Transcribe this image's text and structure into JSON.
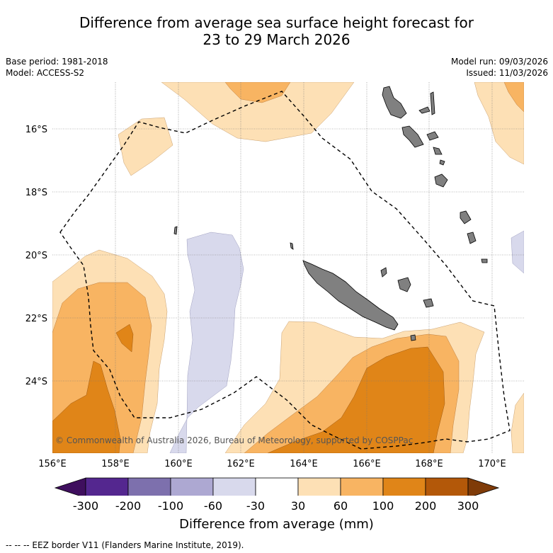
{
  "title": {
    "line1": "Difference from average sea surface height forecast for",
    "line2": "23 to 29 March 2026"
  },
  "meta": {
    "base_period": "Base period: 1981-2018",
    "model": "Model: ACCESS-S2",
    "model_run": "Model run: 09/03/2026",
    "issued": "Issued: 11/03/2026"
  },
  "map": {
    "lat_labels": [
      "16°S",
      "18°S",
      "20°S",
      "22°S",
      "24°S"
    ],
    "lon_labels": [
      "156°E",
      "158°E",
      "160°E",
      "162°E",
      "164°E",
      "166°E",
      "168°E",
      "170°E"
    ],
    "copyright": "© Commonwealth of Australia 2026, Bureau of Meteorology, supported by COSPPac",
    "colors": {
      "land": "#808080",
      "lavender": "#d8d9ec",
      "light_orange": "#fde0b5",
      "medium_orange": "#f8b462",
      "dark_orange": "#e08518"
    }
  },
  "colorbar": {
    "ticks": [
      "-300",
      "-200",
      "-100",
      "-60",
      "-30",
      "30",
      "60",
      "100",
      "200",
      "300"
    ],
    "colors": [
      "#3f0f5e",
      "#54278f",
      "#7d70ad",
      "#ada8d2",
      "#d8d9ec",
      "#ffffff",
      "#fde0b5",
      "#f8b462",
      "#e08518",
      "#b35809",
      "#7f3b08"
    ],
    "title": "Difference from average (mm)"
  },
  "footer": "--  --  -- EEZ border V11 (Flanders Marine Institute, 2019)."
}
